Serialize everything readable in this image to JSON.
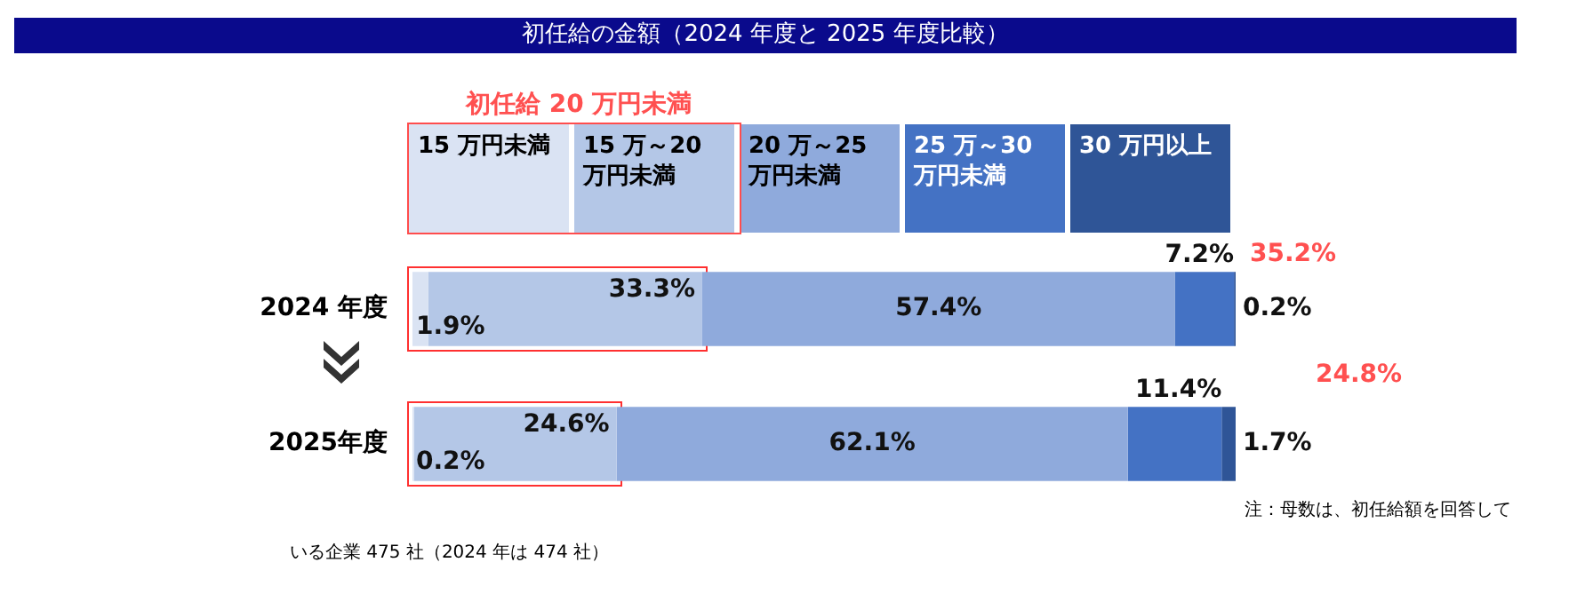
{
  "chart_data": {
    "type": "bar",
    "orientation": "horizontal",
    "stacked": true,
    "title": "初任給の金額（2024 年度と 2025 年度比較）",
    "categories": [
      "2024 年度",
      "2025年度"
    ],
    "series": [
      {
        "name": "15 万円未満",
        "color": "#dae3f3",
        "values": [
          1.9,
          0.2
        ],
        "value_labels": [
          "1.9%",
          "0.2%"
        ]
      },
      {
        "name": "15 万～20 万円未満",
        "color": "#b4c7e7",
        "values": [
          33.3,
          24.6
        ],
        "value_labels": [
          "33.3%",
          "24.6%"
        ]
      },
      {
        "name": "20 万～25 万円未満",
        "color": "#8faadc",
        "values": [
          57.4,
          62.1
        ],
        "value_labels": [
          "57.4%",
          "62.1%"
        ]
      },
      {
        "name": "25 万～30 万円未満",
        "color": "#4472c4",
        "values": [
          7.2,
          11.4
        ],
        "value_labels": [
          "7.2%",
          "11.4%"
        ]
      },
      {
        "name": "30 万円以上",
        "color": "#2f5597",
        "values": [
          0.2,
          1.7
        ],
        "value_labels": [
          "0.2%",
          "1.7%"
        ]
      }
    ],
    "legend": "top",
    "grid": false,
    "annotations": [
      "初任給 20 万円未満",
      "35.2%",
      "24.8%",
      "注：母数は、初任給額を回答している企業 475 社（2024 年は 474 社）"
    ]
  }
}
